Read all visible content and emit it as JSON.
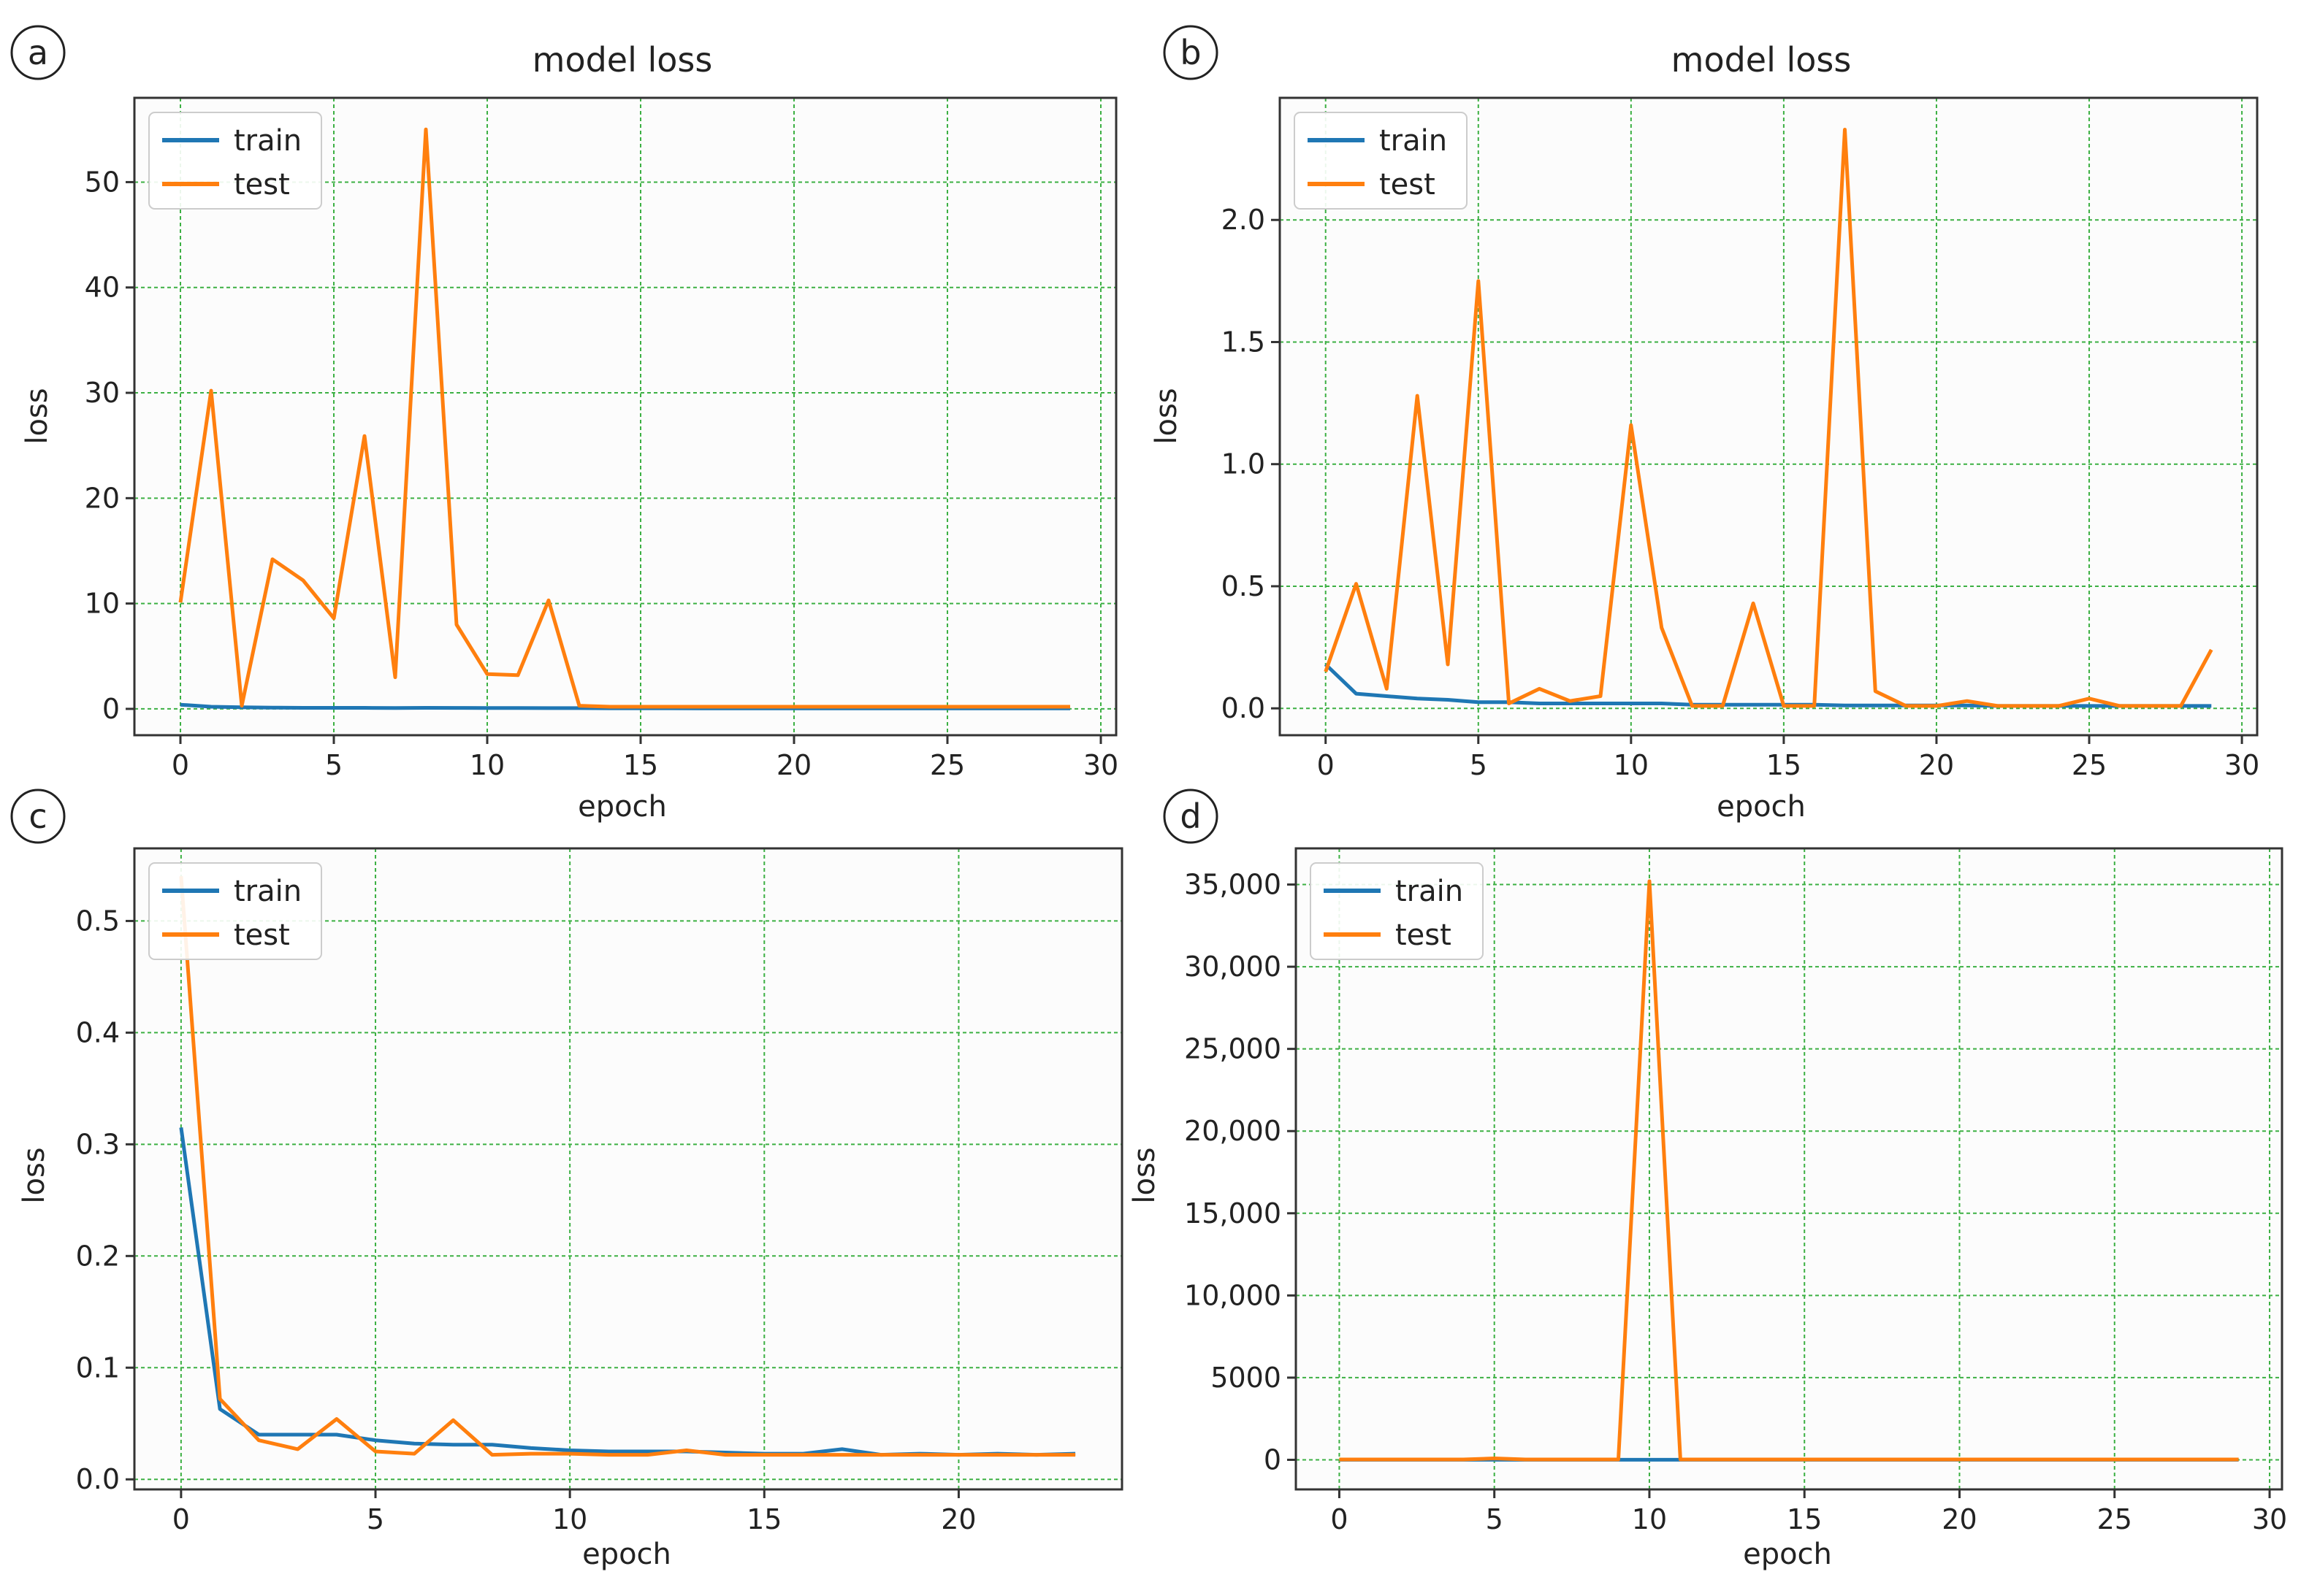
{
  "colors": {
    "train": "#1f77b4",
    "test": "#ff7f0e",
    "grid": "#3cb043",
    "axes": "#333333",
    "plot_bg": "#fcfcfc"
  },
  "chart_data": [
    {
      "panel_label": "a",
      "type": "line",
      "title": "model loss",
      "xlabel": "epoch",
      "ylabel": "loss",
      "xlim": [
        -1.5,
        30.5
      ],
      "ylim": [
        -2.5,
        58
      ],
      "xticks": [
        0,
        5,
        10,
        15,
        20,
        25,
        30
      ],
      "yticks": [
        0,
        10,
        20,
        30,
        40,
        50
      ],
      "ytick_labels": [
        "0",
        "10",
        "20",
        "30",
        "40",
        "50"
      ],
      "grid": true,
      "legend_position": "upper-left",
      "legend": [
        "train",
        "test"
      ],
      "x": [
        0,
        1,
        2,
        3,
        4,
        5,
        6,
        7,
        8,
        9,
        10,
        11,
        12,
        13,
        14,
        15,
        16,
        17,
        18,
        19,
        20,
        21,
        22,
        23,
        24,
        25,
        26,
        27,
        28,
        29
      ],
      "series": [
        {
          "name": "train",
          "values": [
            0.4,
            0.2,
            0.15,
            0.12,
            0.1,
            0.1,
            0.1,
            0.08,
            0.1,
            0.09,
            0.08,
            0.08,
            0.07,
            0.07,
            0.06,
            0.06,
            0.06,
            0.05,
            0.05,
            0.05,
            0.05,
            0.05,
            0.04,
            0.04,
            0.04,
            0.04,
            0.04,
            0.04,
            0.04,
            0.04
          ]
        },
        {
          "name": "test",
          "values": [
            10.1,
            30.2,
            0.3,
            14.2,
            12.2,
            8.6,
            25.9,
            3.0,
            55.0,
            8.0,
            3.3,
            3.2,
            10.3,
            0.3,
            0.2,
            0.2,
            0.2,
            0.2,
            0.2,
            0.2,
            0.2,
            0.2,
            0.2,
            0.2,
            0.2,
            0.2,
            0.2,
            0.2,
            0.2,
            0.2
          ]
        }
      ]
    },
    {
      "panel_label": "b",
      "type": "line",
      "title": "model loss",
      "xlabel": "epoch",
      "ylabel": "loss",
      "xlim": [
        -1.5,
        30.5
      ],
      "ylim": [
        -0.11,
        2.5
      ],
      "xticks": [
        0,
        5,
        10,
        15,
        20,
        25,
        30
      ],
      "yticks": [
        0,
        0.5,
        1.0,
        1.5,
        2.0
      ],
      "ytick_labels": [
        "0.0",
        "0.5",
        "1.0",
        "1.5",
        "2.0"
      ],
      "grid": true,
      "legend_position": "upper-left",
      "legend": [
        "train",
        "test"
      ],
      "x": [
        0,
        1,
        2,
        3,
        4,
        5,
        6,
        7,
        8,
        9,
        10,
        11,
        12,
        13,
        14,
        15,
        16,
        17,
        18,
        19,
        20,
        21,
        22,
        23,
        24,
        25,
        26,
        27,
        28,
        29
      ],
      "series": [
        {
          "name": "train",
          "values": [
            0.18,
            0.06,
            0.05,
            0.04,
            0.035,
            0.025,
            0.025,
            0.02,
            0.02,
            0.02,
            0.02,
            0.02,
            0.015,
            0.015,
            0.015,
            0.015,
            0.015,
            0.012,
            0.012,
            0.012,
            0.012,
            0.012,
            0.01,
            0.01,
            0.01,
            0.01,
            0.01,
            0.01,
            0.01,
            0.01
          ]
        },
        {
          "name": "test",
          "values": [
            0.15,
            0.51,
            0.08,
            1.28,
            0.18,
            1.75,
            0.02,
            0.08,
            0.03,
            0.05,
            1.16,
            0.33,
            0.01,
            0.01,
            0.43,
            0.01,
            0.01,
            2.37,
            0.07,
            0.01,
            0.01,
            0.03,
            0.01,
            0.01,
            0.01,
            0.04,
            0.01,
            0.01,
            0.01,
            0.24
          ]
        }
      ]
    },
    {
      "panel_label": "c",
      "type": "line",
      "title": "",
      "xlabel": "epoch",
      "ylabel": "loss",
      "xlim": [
        -1.2,
        24.2
      ],
      "ylim": [
        -0.009,
        0.565
      ],
      "xticks": [
        0,
        5,
        10,
        15,
        20
      ],
      "yticks": [
        0,
        0.1,
        0.2,
        0.3,
        0.4,
        0.5
      ],
      "ytick_labels": [
        "0.0",
        "0.1",
        "0.2",
        "0.3",
        "0.4",
        "0.5"
      ],
      "grid": true,
      "legend_position": "upper-left",
      "legend": [
        "train",
        "test"
      ],
      "x": [
        0,
        1,
        2,
        3,
        4,
        5,
        6,
        7,
        8,
        9,
        10,
        11,
        12,
        13,
        14,
        15,
        16,
        17,
        18,
        19,
        20,
        21,
        22,
        23
      ],
      "series": [
        {
          "name": "train",
          "values": [
            0.315,
            0.063,
            0.04,
            0.04,
            0.04,
            0.035,
            0.032,
            0.031,
            0.031,
            0.028,
            0.026,
            0.025,
            0.025,
            0.025,
            0.024,
            0.023,
            0.023,
            0.027,
            0.022,
            0.023,
            0.022,
            0.023,
            0.022,
            0.023
          ]
        },
        {
          "name": "test",
          "values": [
            0.54,
            0.072,
            0.035,
            0.027,
            0.054,
            0.025,
            0.023,
            0.053,
            0.022,
            0.023,
            0.023,
            0.022,
            0.022,
            0.026,
            0.022,
            0.022,
            0.022,
            0.022,
            0.022,
            0.022,
            0.022,
            0.022,
            0.022,
            0.022
          ]
        }
      ]
    },
    {
      "panel_label": "d",
      "type": "line",
      "title": "",
      "xlabel": "epoch",
      "ylabel": "loss",
      "xlim": [
        -1.4,
        30.4
      ],
      "ylim": [
        -1800,
        37200
      ],
      "xticks": [
        0,
        5,
        10,
        15,
        20,
        25,
        30
      ],
      "yticks": [
        0,
        5000,
        10000,
        15000,
        20000,
        25000,
        30000,
        35000
      ],
      "ytick_labels": [
        "0",
        "5000",
        "10,000",
        "15,000",
        "20,000",
        "25,000",
        "30,000",
        "35,000"
      ],
      "grid": true,
      "legend_position": "upper-left",
      "legend": [
        "train",
        "test"
      ],
      "x": [
        0,
        1,
        2,
        3,
        4,
        5,
        6,
        7,
        8,
        9,
        10,
        11,
        12,
        13,
        14,
        15,
        16,
        17,
        18,
        19,
        20,
        21,
        22,
        23,
        24,
        25,
        26,
        27,
        28,
        29
      ],
      "series": [
        {
          "name": "train",
          "values": [
            5,
            5,
            5,
            5,
            5,
            5,
            5,
            5,
            5,
            5,
            5,
            5,
            5,
            5,
            5,
            5,
            5,
            5,
            5,
            5,
            5,
            5,
            5,
            5,
            5,
            5,
            5,
            5,
            5,
            5
          ]
        },
        {
          "name": "test",
          "values": [
            20,
            20,
            20,
            20,
            20,
            90,
            20,
            20,
            20,
            20,
            35200,
            20,
            20,
            20,
            20,
            20,
            20,
            20,
            20,
            20,
            20,
            20,
            20,
            20,
            20,
            20,
            20,
            20,
            20,
            20
          ]
        }
      ]
    }
  ]
}
